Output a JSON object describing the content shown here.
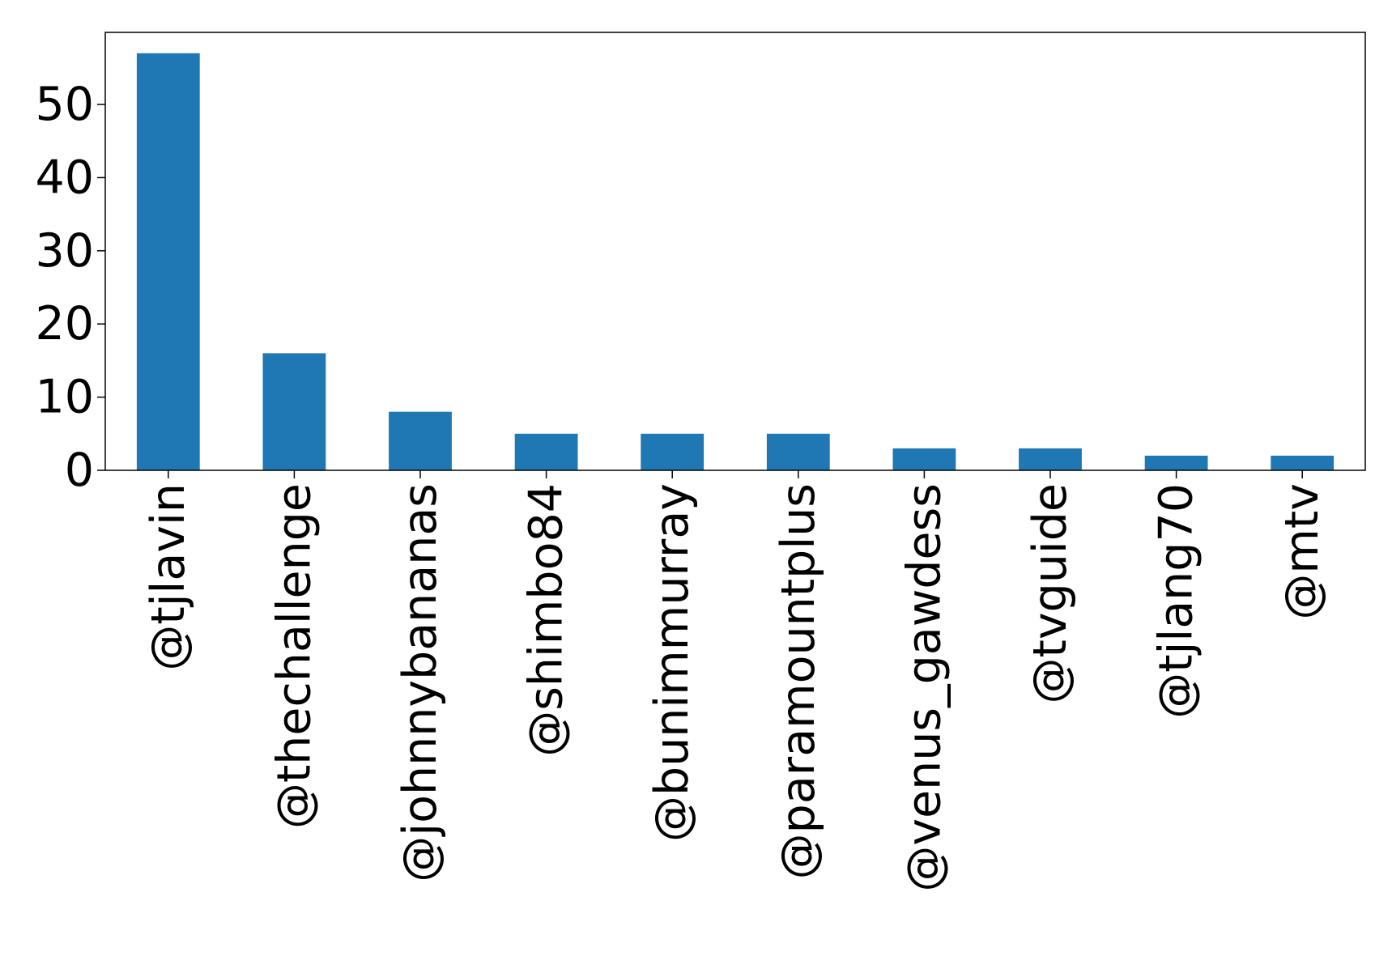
{
  "chart_data": {
    "type": "bar",
    "title": "",
    "xlabel": "",
    "ylabel": "",
    "categories": [
      "@tjlavin",
      "@thechallenge",
      "@johnnybananas",
      "@shimbo84",
      "@bunimmurray",
      "@paramountplus",
      "@venus_gawdess",
      "@tvguide",
      "@tjlang70",
      "@mtv"
    ],
    "values": [
      57,
      16,
      8,
      5,
      5,
      5,
      3,
      3,
      2,
      2
    ],
    "ylim": [
      0,
      59.85
    ],
    "yticks": [
      0,
      10,
      20,
      30,
      40,
      50
    ],
    "grid": false,
    "legend": "none",
    "bar_color": "#1f77b4"
  }
}
